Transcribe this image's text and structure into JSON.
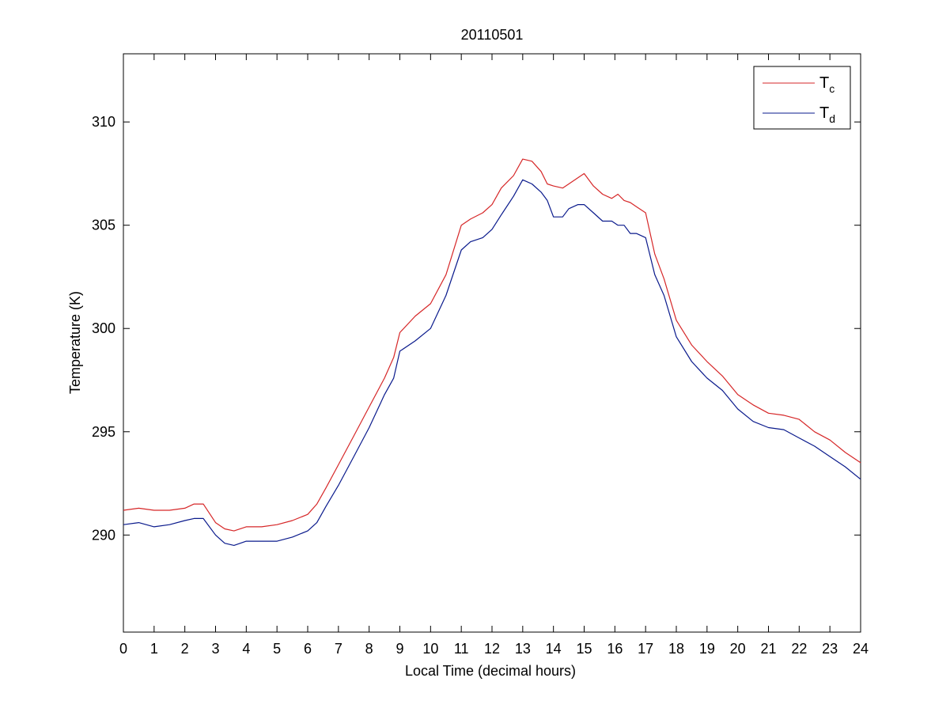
{
  "chart_data": {
    "type": "line",
    "title": "20110501",
    "xlabel": "Local Time (decimal hours)",
    "ylabel": "Temperature (K)",
    "xlim": [
      0,
      24
    ],
    "ylim": [
      285.3,
      313.3
    ],
    "xticks": [
      0,
      1,
      2,
      3,
      4,
      5,
      6,
      7,
      8,
      9,
      10,
      11,
      12,
      13,
      14,
      15,
      16,
      17,
      18,
      19,
      20,
      21,
      22,
      23,
      24
    ],
    "yticks": [
      290,
      295,
      300,
      305,
      310
    ],
    "grid": false,
    "legend_position": "top-right",
    "series": [
      {
        "name": "T",
        "subscript": "c",
        "color": "#d62728",
        "x": [
          0,
          0.5,
          1,
          1.5,
          2,
          2.3,
          2.6,
          3,
          3.3,
          3.6,
          4,
          4.5,
          5,
          5.5,
          6,
          6.3,
          6.6,
          7,
          7.5,
          8,
          8.5,
          8.8,
          9,
          9.5,
          10,
          10.5,
          11,
          11.3,
          11.7,
          12,
          12.3,
          12.7,
          13,
          13.3,
          13.6,
          13.8,
          14,
          14.3,
          14.5,
          14.8,
          15,
          15.3,
          15.6,
          15.9,
          16.1,
          16.3,
          16.5,
          16.7,
          17,
          17.3,
          17.6,
          18,
          18.5,
          19,
          19.5,
          20,
          20.5,
          21,
          21.5,
          22,
          22.5,
          23,
          23.5,
          24
        ],
        "y": [
          291.2,
          291.3,
          291.2,
          291.2,
          291.3,
          291.5,
          291.5,
          290.6,
          290.3,
          290.2,
          290.4,
          290.4,
          290.5,
          290.7,
          291.0,
          291.5,
          292.3,
          293.4,
          294.8,
          296.2,
          297.6,
          298.6,
          299.8,
          300.6,
          301.2,
          302.6,
          305.0,
          305.3,
          305.6,
          306.0,
          306.8,
          307.4,
          308.2,
          308.1,
          307.6,
          307.0,
          306.9,
          306.8,
          307.0,
          307.3,
          307.5,
          306.9,
          306.5,
          306.3,
          306.5,
          306.2,
          306.1,
          305.9,
          305.6,
          303.6,
          302.4,
          300.4,
          299.2,
          298.4,
          297.7,
          296.8,
          296.3,
          295.9,
          295.8,
          295.6,
          295.0,
          294.6,
          294.0,
          293.5
        ]
      },
      {
        "name": "T",
        "subscript": "d",
        "color": "#0a1a8c",
        "x": [
          0,
          0.5,
          1,
          1.5,
          2,
          2.3,
          2.6,
          3,
          3.3,
          3.6,
          4,
          4.5,
          5,
          5.5,
          6,
          6.3,
          6.6,
          7,
          7.5,
          8,
          8.5,
          8.8,
          9,
          9.5,
          10,
          10.5,
          11,
          11.3,
          11.7,
          12,
          12.3,
          12.7,
          13,
          13.3,
          13.6,
          13.8,
          14,
          14.3,
          14.5,
          14.8,
          15,
          15.3,
          15.6,
          15.9,
          16.1,
          16.3,
          16.5,
          16.7,
          17,
          17.3,
          17.6,
          18,
          18.5,
          19,
          19.5,
          20,
          20.5,
          21,
          21.5,
          22,
          22.5,
          23,
          23.5,
          24
        ],
        "y": [
          290.5,
          290.6,
          290.4,
          290.5,
          290.7,
          290.8,
          290.8,
          290.0,
          289.6,
          289.5,
          289.7,
          289.7,
          289.7,
          289.9,
          290.2,
          290.6,
          291.4,
          292.4,
          293.8,
          295.2,
          296.8,
          297.6,
          298.9,
          299.4,
          300.0,
          301.6,
          303.8,
          304.2,
          304.4,
          304.8,
          305.5,
          306.4,
          307.2,
          307.0,
          306.6,
          306.2,
          305.4,
          305.4,
          305.8,
          306.0,
          306.0,
          305.6,
          305.2,
          305.2,
          305.0,
          305.0,
          304.6,
          304.6,
          304.4,
          302.6,
          301.6,
          299.6,
          298.4,
          297.6,
          297.0,
          296.1,
          295.5,
          295.2,
          295.1,
          294.7,
          294.3,
          293.8,
          293.3,
          292.7
        ]
      }
    ]
  }
}
